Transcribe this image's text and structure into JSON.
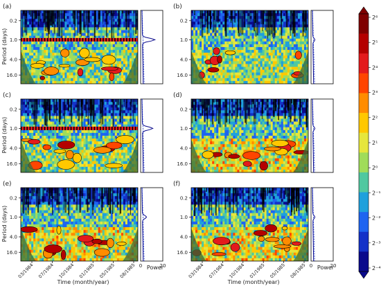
{
  "figure": {
    "ylabel": "Period (days)",
    "xlabel": "Time (month/year)",
    "power_label": "Power",
    "power_ticks": [
      "0",
      "20"
    ]
  },
  "colorbar": {
    "ticks": [
      "2⁶",
      "2⁵",
      "2⁴",
      "2³",
      "2²",
      "2¹",
      "2⁰",
      "2⁻¹",
      "2⁻²",
      "2⁻³",
      "2⁻⁴"
    ],
    "colors_top_to_bottom": [
      "#7f0000",
      "#b40000",
      "#e31a1c",
      "#ff4500",
      "#ff8c00",
      "#ffc800",
      "#e6e63c",
      "#a0dc5a",
      "#50c8a0",
      "#1ea0dc",
      "#1e64f0",
      "#1432c8",
      "#0a0a8c"
    ]
  },
  "chart_data": [
    {
      "type": "heatmap",
      "panel_label": "(a)",
      "y_ticks": [
        "0.2",
        "1.0",
        "4.0",
        "16.0"
      ],
      "x_ticks": [],
      "note_band_days": 1.0
    },
    {
      "type": "heatmap",
      "panel_label": "(b)",
      "y_ticks": [
        "0.2",
        "1.0",
        "4.0",
        "16.0"
      ],
      "x_ticks": []
    },
    {
      "type": "heatmap",
      "panel_label": "(c)",
      "y_ticks": [
        "0.2",
        "1.0",
        "4.0",
        "16.0"
      ],
      "x_ticks": [],
      "note_band_days": 1.0
    },
    {
      "type": "heatmap",
      "panel_label": "(d)",
      "y_ticks": [
        "0.2",
        "1.0",
        "4.0",
        "16.0"
      ],
      "x_ticks": []
    },
    {
      "type": "heatmap",
      "panel_label": "(e)",
      "y_ticks": [
        "0.2",
        "1.0",
        "4.0",
        "16.0"
      ],
      "x_ticks": [
        "03/1984",
        "07/1984",
        "10/1984",
        "01/1985",
        "05/1985",
        "08/1985"
      ]
    },
    {
      "type": "heatmap",
      "panel_label": "(f)",
      "y_ticks": [
        "0.2",
        "1.0",
        "4.0",
        "16.0"
      ],
      "x_ticks": [
        "03/1984",
        "07/1984",
        "10/1984",
        "01/1985",
        "05/1985",
        "08/1985"
      ]
    }
  ],
  "power_spectra": [
    {
      "panel": "(a)",
      "peak_period_days": 1.0,
      "peak_power": 12
    },
    {
      "panel": "(b)",
      "peak_period_days": 1.0,
      "peak_power": 2
    },
    {
      "panel": "(c)",
      "peak_period_days": 1.0,
      "peak_power": 10
    },
    {
      "panel": "(d)",
      "peak_period_days": 1.0,
      "peak_power": 2
    },
    {
      "panel": "(e)",
      "peak_period_days": 1.0,
      "peak_power": 4
    },
    {
      "panel": "(f)",
      "peak_period_days": 1.0,
      "peak_power": 2
    }
  ]
}
